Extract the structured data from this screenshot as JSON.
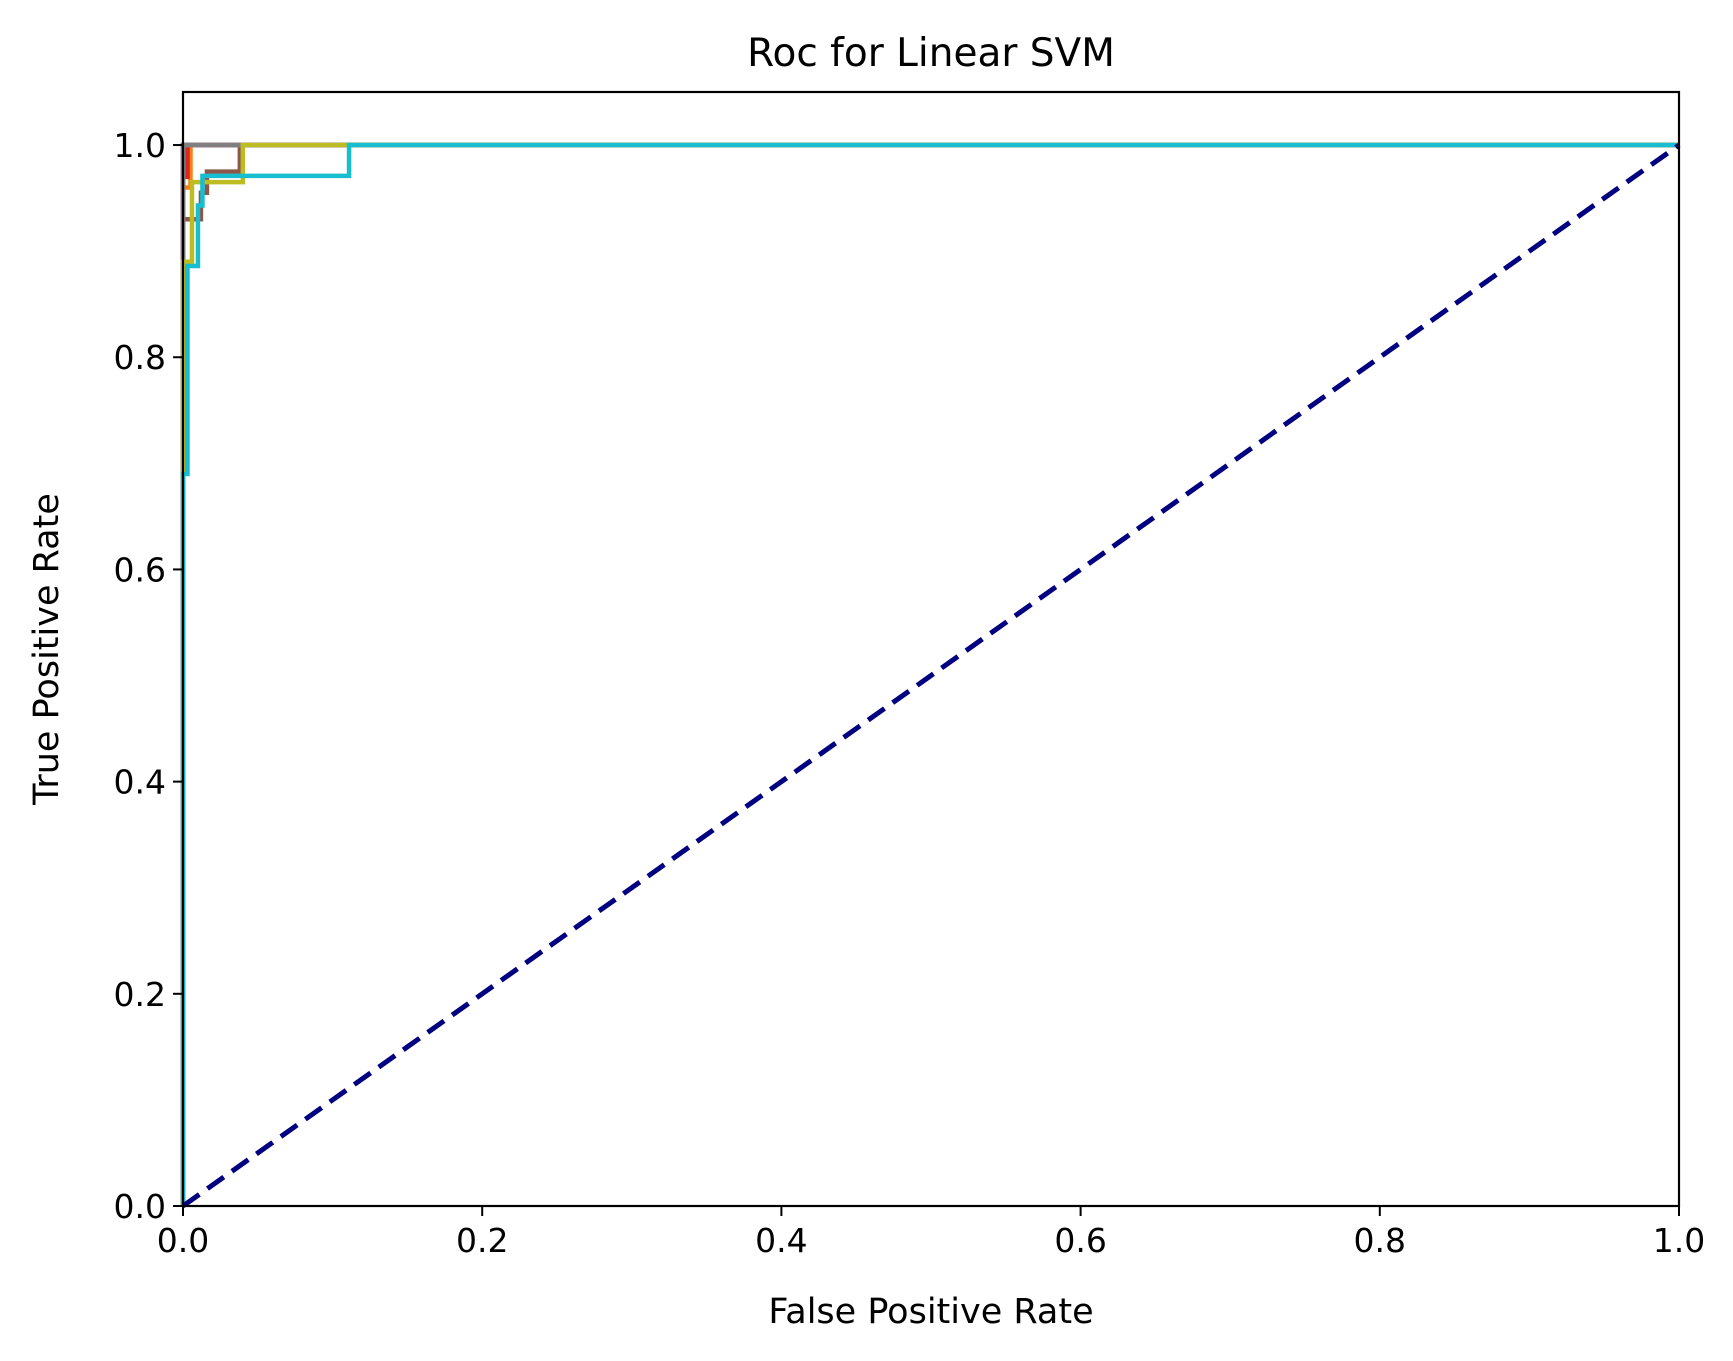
{
  "chart_data": {
    "type": "line",
    "title": "Roc for Linear SVM",
    "xlabel": "False Positive Rate",
    "ylabel": "True Positive Rate",
    "xlim": [
      0.0,
      1.0
    ],
    "ylim": [
      0.0,
      1.05
    ],
    "x_ticks": [
      0.0,
      0.2,
      0.4,
      0.6,
      0.8,
      1.0
    ],
    "y_ticks": [
      0.0,
      0.2,
      0.4,
      0.6,
      0.8,
      1.0
    ],
    "x_tick_labels": [
      "0.0",
      "0.2",
      "0.4",
      "0.6",
      "0.8",
      "1.0"
    ],
    "y_tick_labels": [
      "0.0",
      "0.2",
      "0.4",
      "0.6",
      "0.8",
      "1.0"
    ],
    "grid": false,
    "legend": "none",
    "series": [
      {
        "color": "#1f77b4",
        "line_style": "solid",
        "x": [
          0.0,
          0.0,
          0.0,
          1.0
        ],
        "y": [
          0.0,
          0.98,
          1.0,
          1.0
        ]
      },
      {
        "color": "#ff7f0e",
        "line_style": "solid",
        "x": [
          0.0,
          0.0,
          0.005,
          0.005,
          1.0
        ],
        "y": [
          0.0,
          0.96,
          0.96,
          1.0,
          1.0
        ]
      },
      {
        "color": "#2ca02c",
        "line_style": "solid",
        "x": [
          0.0,
          0.0,
          1.0
        ],
        "y": [
          0.0,
          1.0,
          1.0
        ]
      },
      {
        "color": "#d62728",
        "line_style": "solid",
        "x": [
          0.0,
          0.0,
          0.003,
          0.003,
          1.0
        ],
        "y": [
          0.0,
          0.97,
          0.97,
          1.0,
          1.0
        ]
      },
      {
        "color": "#9467bd",
        "line_style": "solid",
        "x": [
          0.0,
          0.0,
          1.0
        ],
        "y": [
          0.0,
          1.0,
          1.0
        ]
      },
      {
        "color": "#8c564b",
        "line_style": "solid",
        "x": [
          0.0,
          0.0,
          0.012,
          0.012,
          0.016,
          0.016,
          0.038,
          0.038,
          1.0
        ],
        "y": [
          0.0,
          0.93,
          0.93,
          0.955,
          0.955,
          0.975,
          0.975,
          1.0,
          1.0
        ]
      },
      {
        "color": "#e377c2",
        "line_style": "solid",
        "x": [
          0.0,
          0.0,
          1.0
        ],
        "y": [
          0.0,
          1.0,
          1.0
        ]
      },
      {
        "color": "#7f7f7f",
        "line_style": "solid",
        "x": [
          0.0,
          0.0,
          1.0
        ],
        "y": [
          0.0,
          1.0,
          1.0
        ]
      },
      {
        "color": "#bcbd22",
        "line_style": "solid",
        "x": [
          0.0,
          0.0,
          0.006,
          0.006,
          0.04,
          0.04,
          1.0
        ],
        "y": [
          0.0,
          0.89,
          0.89,
          0.965,
          0.965,
          1.0,
          1.0
        ]
      },
      {
        "color": "#17becf",
        "line_style": "solid",
        "x": [
          0.0,
          0.0,
          0.003,
          0.003,
          0.01,
          0.01,
          0.013,
          0.013,
          0.111,
          0.111,
          1.0
        ],
        "y": [
          0.0,
          0.69,
          0.69,
          0.886,
          0.886,
          0.943,
          0.943,
          0.971,
          0.971,
          1.0,
          1.0
        ]
      },
      {
        "color": "#000080",
        "line_style": "dashed",
        "x": [
          0.0,
          1.0
        ],
        "y": [
          0.0,
          1.0
        ]
      }
    ]
  }
}
